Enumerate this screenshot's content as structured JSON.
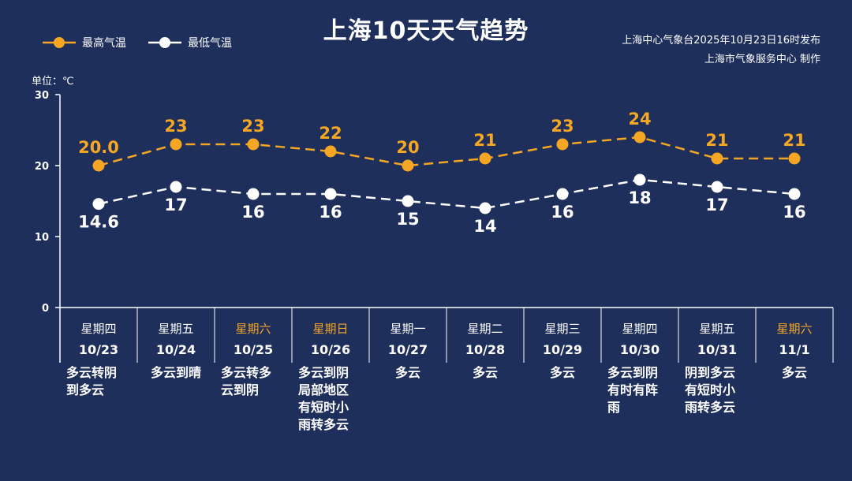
{
  "title": "上海10天天气趋势",
  "legend": {
    "high": "最高气温",
    "low": "最低气温"
  },
  "source_line1": "上海中心气象台2025年10月23日16时发布",
  "source_line2": "上海市气象服务中心  制作",
  "unit_label": "单位：℃",
  "colors": {
    "background": "#1f2f5c",
    "high": "#f5a623",
    "low": "#ffffff",
    "weekend": "#f5a623"
  },
  "chart_data": {
    "type": "line",
    "title": "上海10天天气趋势",
    "ylim": [
      0,
      30
    ],
    "yticks": [
      "0",
      "10",
      "20",
      "30"
    ],
    "categories": [
      "10/23",
      "10/24",
      "10/25",
      "10/26",
      "10/27",
      "10/28",
      "10/29",
      "10/30",
      "10/31",
      "11/1"
    ],
    "series": [
      {
        "name": "最高气温",
        "values": [
          20.0,
          23,
          23,
          22,
          20,
          21,
          23,
          24,
          21,
          21
        ],
        "labels": [
          "20.0",
          "23",
          "23",
          "22",
          "20",
          "21",
          "23",
          "24",
          "21",
          "21"
        ]
      },
      {
        "name": "最低气温",
        "values": [
          14.6,
          17,
          16,
          16,
          15,
          14,
          16,
          18,
          17,
          16
        ],
        "labels": [
          "14.6",
          "17",
          "16",
          "16",
          "15",
          "14",
          "16",
          "18",
          "17",
          "16"
        ]
      }
    ]
  },
  "days": [
    {
      "weekday": "星期四",
      "date": "10/23",
      "weather": "多云转阴\n到多云",
      "weekend": false
    },
    {
      "weekday": "星期五",
      "date": "10/24",
      "weather": "多云到晴",
      "weekend": false
    },
    {
      "weekday": "星期六",
      "date": "10/25",
      "weather": "多云转多\n云到阴",
      "weekend": true
    },
    {
      "weekday": "星期日",
      "date": "10/26",
      "weather": "多云到阴\n局部地区\n有短时小\n雨转多云",
      "weekend": true
    },
    {
      "weekday": "星期一",
      "date": "10/27",
      "weather": "多云",
      "weekend": false
    },
    {
      "weekday": "星期二",
      "date": "10/28",
      "weather": "多云",
      "weekend": false
    },
    {
      "weekday": "星期三",
      "date": "10/29",
      "weather": "多云",
      "weekend": false
    },
    {
      "weekday": "星期四",
      "date": "10/30",
      "weather": "多云到阴\n有时有阵\n雨",
      "weekend": false
    },
    {
      "weekday": "星期五",
      "date": "10/31",
      "weather": "阴到多云\n有短时小\n雨转多云",
      "weekend": false
    },
    {
      "weekday": "星期六",
      "date": "11/1",
      "weather": "多云",
      "weekend": true
    }
  ]
}
